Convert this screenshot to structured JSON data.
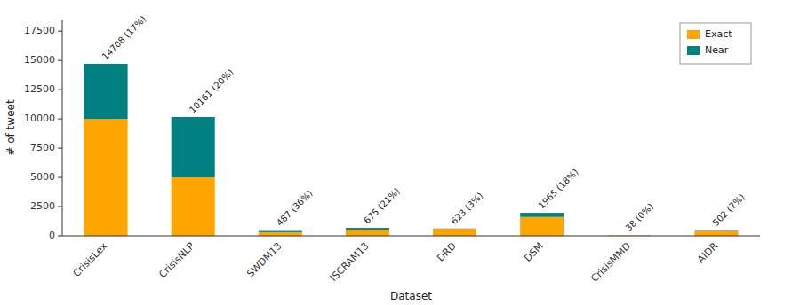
{
  "chart_data": {
    "type": "bar",
    "stacked": true,
    "categories": [
      "CrisisLex",
      "CrisisNLP",
      "SWDM13",
      "ISCRAM13",
      "DRD",
      "DSM",
      "CrisisMMD",
      "AIDR"
    ],
    "series": [
      {
        "name": "Exact",
        "color": "#FFA500",
        "values": [
          10000,
          5000,
          312,
          533,
          604,
          1612,
          38,
          467
        ]
      },
      {
        "name": "Near",
        "color": "#008080",
        "values": [
          4708,
          5161,
          175,
          142,
          19,
          353,
          0,
          35
        ]
      }
    ],
    "xlabel": "Dataset",
    "ylabel": "# of tweet",
    "ylim": [
      0,
      18500
    ],
    "yticks": [
      0,
      2500,
      5000,
      7500,
      10000,
      12500,
      15000,
      17500
    ],
    "legend": "upper right",
    "grid": false,
    "annotations": [
      {
        "text": "14708 (17%)",
        "x": "CrisisLex",
        "y": 14708
      },
      {
        "text": "10161 (20%)",
        "x": "CrisisNLP",
        "y": 10161
      },
      {
        "text": "487 (36%)",
        "x": "SWDM13",
        "y": 487
      },
      {
        "text": "675 (21%)",
        "x": "ISCRAM13",
        "y": 675
      },
      {
        "text": "623 (3%)",
        "x": "DRD",
        "y": 623
      },
      {
        "text": "1965 (18%)",
        "x": "DSM",
        "y": 1965
      },
      {
        "text": "38 (0%)",
        "x": "CrisisMMD",
        "y": 38
      },
      {
        "text": "502 (7%)",
        "x": "AIDR",
        "y": 502
      }
    ]
  }
}
